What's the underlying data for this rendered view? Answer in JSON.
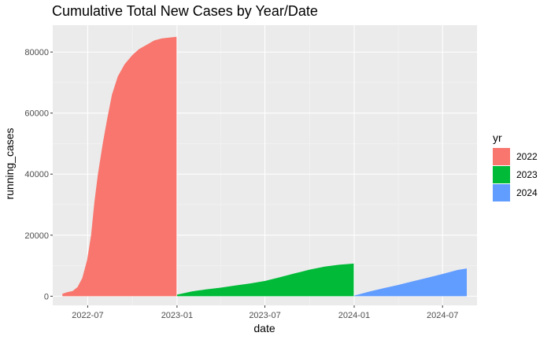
{
  "chart_data": {
    "type": "area",
    "title": "Cumulative Total New Cases by Year/Date",
    "xlabel": "date",
    "ylabel": "running_cases",
    "x_ticks": [
      "2022-07",
      "2023-01",
      "2023-07",
      "2024-01",
      "2024-07"
    ],
    "y_ticks": [
      "0",
      "20000",
      "40000",
      "60000",
      "80000"
    ],
    "ylim": [
      0,
      85000
    ],
    "xlim": [
      "2022-04-20",
      "2024-09-10"
    ],
    "grid": true,
    "legend": {
      "title": "yr",
      "position": "right"
    },
    "series": [
      {
        "name": "2022",
        "color": "#F8766D",
        "points": [
          [
            "2022-05-10",
            800
          ],
          [
            "2022-05-20",
            1300
          ],
          [
            "2022-05-31",
            1700
          ],
          [
            "2022-06-10",
            3000
          ],
          [
            "2022-06-20",
            6000
          ],
          [
            "2022-06-30",
            12000
          ],
          [
            "2022-07-08",
            20000
          ],
          [
            "2022-07-15",
            31000
          ],
          [
            "2022-07-22",
            40000
          ],
          [
            "2022-08-01",
            50000
          ],
          [
            "2022-08-10",
            58000
          ],
          [
            "2022-08-20",
            66000
          ],
          [
            "2022-09-01",
            72000
          ],
          [
            "2022-09-15",
            76000
          ],
          [
            "2022-10-01",
            79000
          ],
          [
            "2022-10-15",
            81000
          ],
          [
            "2022-11-01",
            82500
          ],
          [
            "2022-11-15",
            83800
          ],
          [
            "2022-12-01",
            84500
          ],
          [
            "2022-12-31",
            85000
          ]
        ]
      },
      {
        "name": "2023",
        "color": "#00BA38",
        "points": [
          [
            "2023-01-01",
            500
          ],
          [
            "2023-02-01",
            1600
          ],
          [
            "2023-03-01",
            2200
          ],
          [
            "2023-04-01",
            2800
          ],
          [
            "2023-05-01",
            3500
          ],
          [
            "2023-06-01",
            4200
          ],
          [
            "2023-07-01",
            5000
          ],
          [
            "2023-08-01",
            6200
          ],
          [
            "2023-09-01",
            7500
          ],
          [
            "2023-10-01",
            8700
          ],
          [
            "2023-11-01",
            9700
          ],
          [
            "2023-12-01",
            10300
          ],
          [
            "2023-12-31",
            10700
          ]
        ]
      },
      {
        "name": "2024",
        "color": "#619CFF",
        "points": [
          [
            "2024-01-01",
            200
          ],
          [
            "2024-02-01",
            1500
          ],
          [
            "2024-03-01",
            2600
          ],
          [
            "2024-04-01",
            3700
          ],
          [
            "2024-05-01",
            4900
          ],
          [
            "2024-06-01",
            6100
          ],
          [
            "2024-07-01",
            7300
          ],
          [
            "2024-08-01",
            8600
          ],
          [
            "2024-08-20",
            9100
          ]
        ]
      }
    ]
  }
}
